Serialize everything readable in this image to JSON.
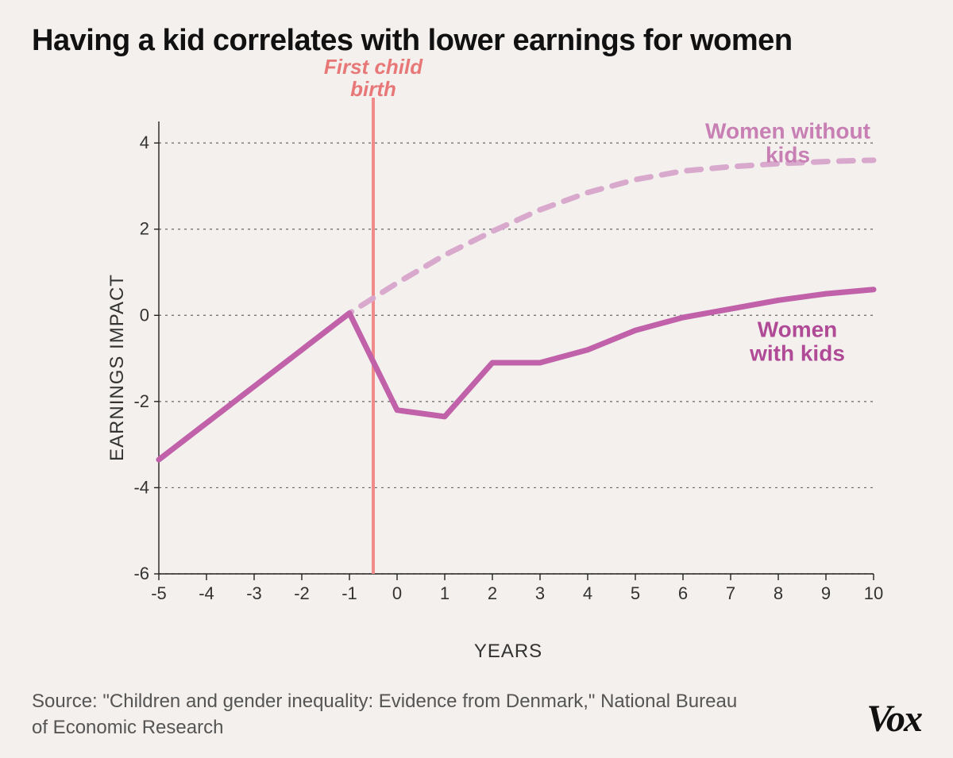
{
  "title": "Having a kid correlates with lower earnings for women",
  "y_axis_label": "EARNINGS IMPACT",
  "x_axis_label": "YEARS",
  "source_text": "Source: \"Children and gender inequality: Evidence from Denmark,\" National Bureau of Economic Research",
  "logo_text": "Vox",
  "chart": {
    "type": "line",
    "background_color": "#f3f0ed",
    "grid_color": "#666666",
    "axis_color": "#222222",
    "xlim": [
      -5,
      10
    ],
    "ylim": [
      -6,
      4.5
    ],
    "xticks": [
      -5,
      -4,
      -3,
      -2,
      -1,
      0,
      1,
      2,
      3,
      4,
      5,
      6,
      7,
      8,
      9,
      10
    ],
    "yticks": [
      -6,
      -4,
      -2,
      0,
      2,
      4
    ],
    "xtick_labels": [
      "-5",
      "-4",
      "-3",
      "-2",
      "-1",
      "0",
      "1",
      "2",
      "3",
      "4",
      "5",
      "6",
      "7",
      "8",
      "9",
      "10"
    ],
    "ytick_labels": [
      "-6",
      "-4",
      "-2",
      "0",
      "2",
      "4"
    ],
    "tick_fontsize": 22,
    "title_fontsize": 38,
    "label_fontsize": 24,
    "event_line": {
      "x": -0.5,
      "color": "#f08b8b",
      "width": 4,
      "label": "First child\nbirth",
      "label_color": "#e87878",
      "label_fontsize": 26,
      "label_fontstyle": "italic",
      "label_fontweight": 700
    },
    "series": [
      {
        "name": "women_without_kids",
        "label": "Women without\nkids",
        "label_color": "#c77fb4",
        "label_fontsize": 28,
        "label_x": 8.2,
        "label_y": 4.1,
        "color": "#d9a9cd",
        "width": 7,
        "dash": "18 14",
        "x": [
          -5,
          -4,
          -3,
          -2,
          -1,
          0,
          1,
          2,
          3,
          4,
          5,
          6,
          7,
          8,
          9,
          10
        ],
        "y": [
          -3.35,
          -2.5,
          -1.65,
          -0.8,
          0.05,
          0.75,
          1.4,
          1.95,
          2.45,
          2.85,
          3.15,
          3.35,
          3.45,
          3.52,
          3.57,
          3.6
        ]
      },
      {
        "name": "women_with_kids",
        "label": "Women\nwith kids",
        "label_color": "#b04a97",
        "label_fontsize": 28,
        "label_x": 8.4,
        "label_y": -0.5,
        "color": "#c061a9",
        "width": 7,
        "dash": "",
        "x": [
          -5,
          -4,
          -3,
          -2,
          -1,
          0,
          1,
          2,
          3,
          4,
          5,
          6,
          7,
          8,
          9,
          10
        ],
        "y": [
          -3.35,
          -2.5,
          -1.65,
          -0.8,
          0.05,
          -2.2,
          -2.35,
          -1.1,
          -1.1,
          -0.8,
          -0.35,
          -0.05,
          0.15,
          0.35,
          0.5,
          0.6
        ]
      }
    ]
  }
}
